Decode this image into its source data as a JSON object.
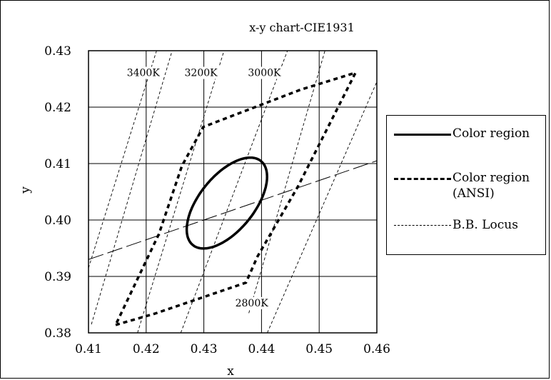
{
  "chart_data": {
    "type": "scatter",
    "title": "x-y chart-CIE1931",
    "xlabel": "x",
    "ylabel": "y",
    "xlim": [
      0.41,
      0.46
    ],
    "ylim": [
      0.38,
      0.43
    ],
    "grid": true,
    "legend_position": "right",
    "xticks": [
      "0.41",
      "0.42",
      "0.43",
      "0.44",
      "0.45",
      "0.46"
    ],
    "yticks": [
      "0.43",
      "0.42",
      "0.41",
      "0.40",
      "0.39",
      "0.38"
    ],
    "series": [
      {
        "name": "Color region",
        "style": "solid-thick",
        "shape": "ellipse",
        "center": [
          0.434,
          0.403
        ],
        "semi_major": 0.0095,
        "semi_minor": 0.0048,
        "angle_deg": 52
      },
      {
        "name": "Color region (ANSI)",
        "name_lines": [
          "Color region",
          "(ANSI)"
        ],
        "style": "dotted-thick",
        "points": [
          [
            0.4147,
            0.3814
          ],
          [
            0.4215,
            0.3834
          ],
          [
            0.4373,
            0.3889
          ],
          [
            0.4393,
            0.3935
          ],
          [
            0.4463,
            0.4059
          ],
          [
            0.4563,
            0.4261
          ],
          [
            0.4468,
            0.4231
          ],
          [
            0.4299,
            0.4165
          ],
          [
            0.4262,
            0.4096
          ],
          [
            0.4222,
            0.3975
          ],
          [
            0.4147,
            0.3814
          ]
        ]
      },
      {
        "name": "B.B. Locus",
        "style": "dashed-thin",
        "points": [
          [
            0.41,
            0.393
          ],
          [
            0.46,
            0.4105
          ]
        ]
      }
    ],
    "isotherms": [
      {
        "label": "3400K",
        "points": [
          [
            0.4105,
            0.3815
          ],
          [
            0.4245,
            0.43
          ]
        ]
      },
      {
        "label": "3200K",
        "points": [
          [
            0.4185,
            0.38
          ],
          [
            0.4335,
            0.43
          ]
        ]
      },
      {
        "label": "3000K",
        "points": [
          [
            0.426,
            0.38
          ],
          [
            0.4445,
            0.43
          ]
        ]
      },
      {
        "label": "2800K",
        "points": [
          [
            0.4378,
            0.3835
          ],
          [
            0.451,
            0.43
          ]
        ]
      },
      {
        "label": "",
        "points": [
          [
            0.441,
            0.38
          ],
          [
            0.46,
            0.4245
          ]
        ]
      },
      {
        "label": "",
        "points": [
          [
            0.41,
            0.3915
          ],
          [
            0.4218,
            0.43
          ]
        ]
      }
    ],
    "cct_label_positions": [
      {
        "label": "3400K",
        "at": [
          0.4195,
          0.4255
        ]
      },
      {
        "label": "3200K",
        "at": [
          0.4295,
          0.4255
        ]
      },
      {
        "label": "3000K",
        "at": [
          0.4405,
          0.4255
        ]
      },
      {
        "label": "2800K",
        "at": [
          0.4383,
          0.3847
        ]
      }
    ]
  }
}
